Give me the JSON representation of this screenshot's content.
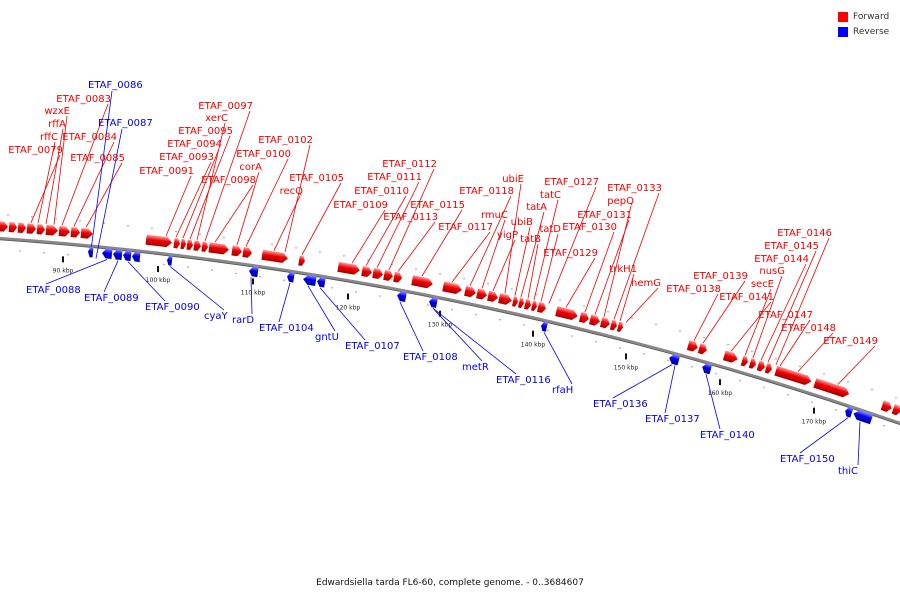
{
  "legend": {
    "forward_label": "Forward",
    "reverse_label": "Reverse",
    "forward_color": "#ff0000",
    "reverse_color": "#0000ff"
  },
  "caption": "Edwardsiella tarda FL6-60, complete genome. - 0..3684607",
  "ticks": [
    "90 kbp",
    "100 kbp",
    "110 kbp",
    "120 kbp",
    "130 kbp",
    "140 kbp",
    "150 kbp",
    "160 kbp",
    "170 kbp"
  ],
  "forward_labels": [
    "ETAF_0079",
    "rffC",
    "rffA",
    "wzxE",
    "ETAF_0083",
    "ETAF_0084",
    "ETAF_0085",
    "ETAF_0091",
    "ETAF_0093",
    "ETAF_0094",
    "ETAF_0095",
    "xerC",
    "ETAF_0097",
    "ETAF_0098",
    "corA",
    "ETAF_0100",
    "recQ",
    "ETAF_0102",
    "ETAF_0105",
    "ETAF_0109",
    "ETAF_0110",
    "ETAF_0111",
    "ETAF_0112",
    "ETAF_0113",
    "ETAF_0115",
    "ETAF_0117",
    "ETAF_0118",
    "rmuC",
    "yigP",
    "ubiE",
    "ubiB",
    "tatA",
    "tatB",
    "tatC",
    "tatD",
    "ETAF_0127",
    "ETAF_0129",
    "ETAF_0130",
    "ETAF_0131",
    "pepQ",
    "ETAF_0133",
    "trkH1",
    "hemG",
    "ETAF_0138",
    "ETAF_0139",
    "ETAF_0141",
    "secE",
    "nusG",
    "ETAF_0144",
    "ETAF_0145",
    "ETAF_0146",
    "ETAF_0147",
    "ETAF_0148",
    "ETAF_0149"
  ],
  "reverse_labels": [
    "ETAF_0086",
    "ETAF_0087",
    "ETAF_0088",
    "ETAF_0089",
    "ETAF_0090",
    "cyaY",
    "rarD",
    "ETAF_0104",
    "gntU",
    "ETAF_0107",
    "ETAF_0108",
    "metR",
    "ETAF_0116",
    "rfaH",
    "ETAF_0136",
    "ETAF_0137",
    "ETAF_0140",
    "ETAF_0150",
    "thiC"
  ]
}
